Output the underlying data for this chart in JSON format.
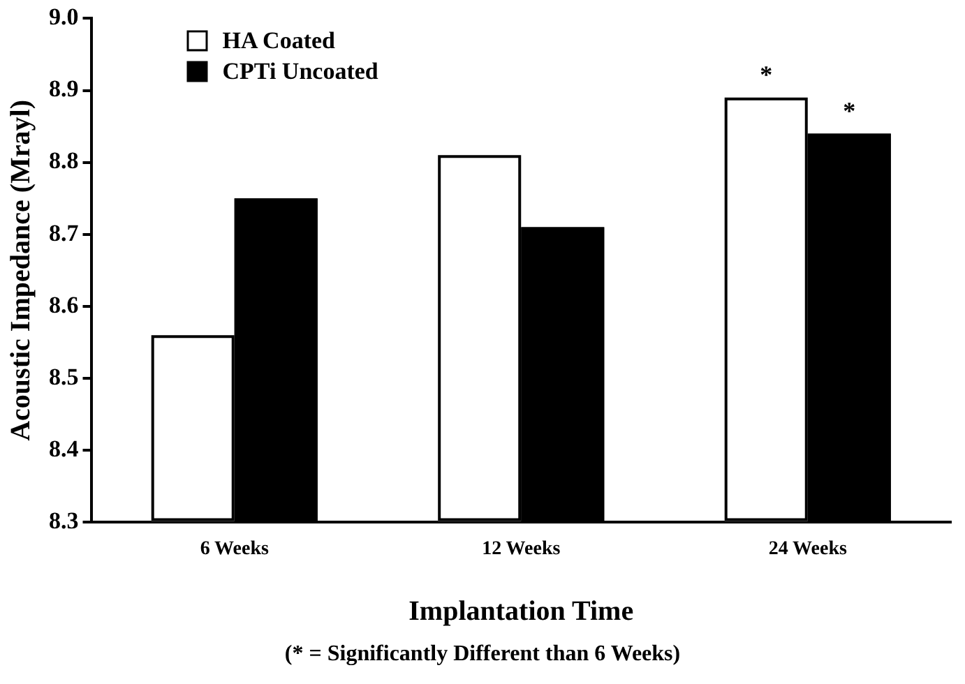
{
  "chart_data": {
    "type": "bar",
    "xlabel": "Implantation Time",
    "ylabel": "Acoustic Impedance (Mrayl)",
    "categories": [
      "6 Weeks",
      "12 Weeks",
      "24 Weeks"
    ],
    "series": [
      {
        "name": "HA Coated",
        "color": "#ffffff",
        "values": [
          8.56,
          8.81,
          8.89
        ]
      },
      {
        "name": "CPTi Uncoated",
        "color": "#000000",
        "values": [
          8.75,
          8.71,
          8.84
        ]
      }
    ],
    "ylim": [
      8.3,
      9.0
    ],
    "yticks": [
      {
        "value": 8.3,
        "label": "8.3"
      },
      {
        "value": 8.4,
        "label": "8.4"
      },
      {
        "value": 8.5,
        "label": "8.5"
      },
      {
        "value": 8.6,
        "label": "8.6"
      },
      {
        "value": 8.7,
        "label": "8.7"
      },
      {
        "value": 8.8,
        "label": "8.8"
      },
      {
        "value": 8.9,
        "label": "8.9"
      },
      {
        "value": 9.0,
        "label": "9.0"
      }
    ],
    "grid": false,
    "legend": "top left",
    "annotations": [
      {
        "text": "*",
        "x": "24 Weeks",
        "y": 8.89
      },
      {
        "text": "*",
        "x": "24 Weeks",
        "y": 8.84
      },
      "(* = Significantly Different than 6 Weeks)"
    ]
  }
}
